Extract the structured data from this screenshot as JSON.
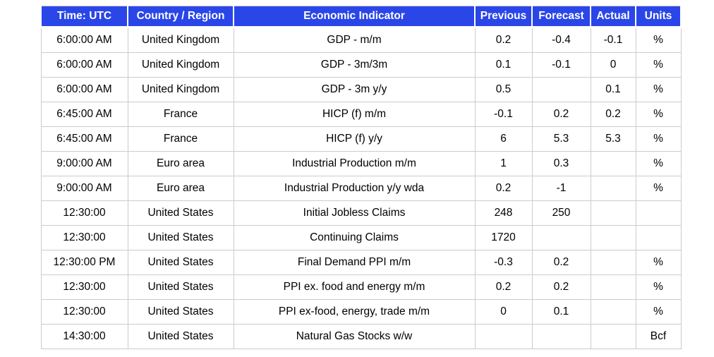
{
  "colors": {
    "header_bg": "#2a46e8",
    "header_text": "#ffffff",
    "border": "#cccccc",
    "cell_text": "#000000"
  },
  "table": {
    "column_keys": [
      "time",
      "country",
      "indicator",
      "previous",
      "forecast",
      "actual",
      "units"
    ],
    "columns": [
      {
        "key": "time",
        "label": "Time: UTC"
      },
      {
        "key": "country",
        "label": "Country / Region"
      },
      {
        "key": "indicator",
        "label": "Economic Indicator"
      },
      {
        "key": "previous",
        "label": "Previous"
      },
      {
        "key": "forecast",
        "label": "Forecast"
      },
      {
        "key": "actual",
        "label": "Actual"
      },
      {
        "key": "units",
        "label": "Units"
      }
    ],
    "rows": [
      {
        "time": "6:00:00 AM",
        "country": "United Kingdom",
        "indicator": "GDP - m/m",
        "previous": "0.2",
        "forecast": "-0.4",
        "actual": "-0.1",
        "units": "%"
      },
      {
        "time": "6:00:00 AM",
        "country": "United Kingdom",
        "indicator": "GDP - 3m/3m",
        "previous": "0.1",
        "forecast": "-0.1",
        "actual": "0",
        "units": "%"
      },
      {
        "time": "6:00:00 AM",
        "country": "United Kingdom",
        "indicator": "GDP - 3m y/y",
        "previous": "0.5",
        "forecast": "",
        "actual": "0.1",
        "units": "%"
      },
      {
        "time": "6:45:00 AM",
        "country": "France",
        "indicator": "HICP (f) m/m",
        "previous": "-0.1",
        "forecast": "0.2",
        "actual": "0.2",
        "units": "%"
      },
      {
        "time": "6:45:00 AM",
        "country": "France",
        "indicator": "HICP (f) y/y",
        "previous": "6",
        "forecast": "5.3",
        "actual": "5.3",
        "units": "%"
      },
      {
        "time": "9:00:00 AM",
        "country": "Euro area",
        "indicator": "Industrial Production m/m",
        "previous": "1",
        "forecast": "0.3",
        "actual": "",
        "units": "%"
      },
      {
        "time": "9:00:00 AM",
        "country": "Euro area",
        "indicator": "Industrial Production y/y wda",
        "previous": "0.2",
        "forecast": "-1",
        "actual": "",
        "units": "%"
      },
      {
        "time": "12:30:00",
        "country": "United States",
        "indicator": "Initial Jobless Claims",
        "previous": "248",
        "forecast": "250",
        "actual": "",
        "units": ""
      },
      {
        "time": "12:30:00",
        "country": "United States",
        "indicator": "Continuing Claims",
        "previous": "1720",
        "forecast": "",
        "actual": "",
        "units": ""
      },
      {
        "time": "12:30:00 PM",
        "country": "United States",
        "indicator": "Final Demand PPI m/m",
        "previous": "-0.3",
        "forecast": "0.2",
        "actual": "",
        "units": "%"
      },
      {
        "time": "12:30:00",
        "country": "United States",
        "indicator": "PPI ex. food and energy m/m",
        "previous": "0.2",
        "forecast": "0.2",
        "actual": "",
        "units": "%"
      },
      {
        "time": "12:30:00",
        "country": "United States",
        "indicator": "PPI ex-food, energy, trade m/m",
        "previous": "0",
        "forecast": "0.1",
        "actual": "",
        "units": "%"
      },
      {
        "time": "14:30:00",
        "country": "United States",
        "indicator": "Natural Gas Stocks w/w",
        "previous": "",
        "forecast": "",
        "actual": "",
        "units": "Bcf"
      }
    ]
  }
}
